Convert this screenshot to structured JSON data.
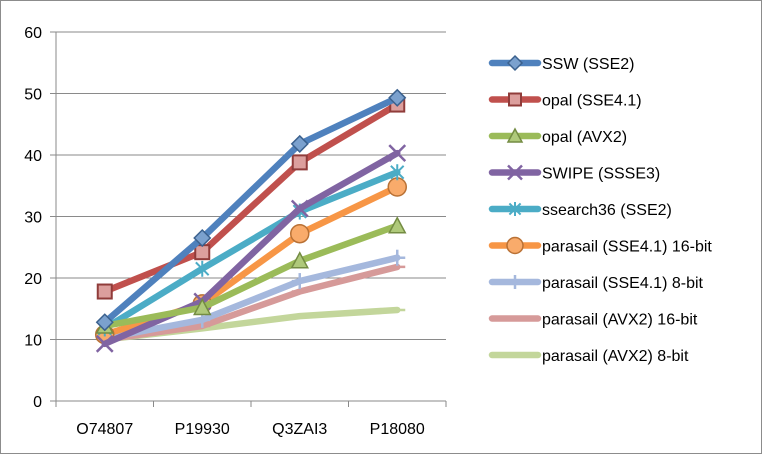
{
  "chart_data": {
    "type": "line",
    "categories": [
      "O74807",
      "P19930",
      "Q3ZAI3",
      "P18080"
    ],
    "ylim": [
      0,
      60
    ],
    "yticks": [
      0,
      10,
      20,
      30,
      40,
      50,
      60
    ],
    "grid": true,
    "legend_position": "right",
    "series": [
      {
        "name": "SSW (SSE2)",
        "values": [
          12.8,
          26.5,
          41.8,
          49.3
        ],
        "color": "#4f81bd",
        "marker": "diamond"
      },
      {
        "name": "opal (SSE4.1)",
        "values": [
          17.8,
          24.2,
          38.8,
          48.2
        ],
        "color": "#c0504d",
        "marker": "square"
      },
      {
        "name": "opal (AVX2)",
        "values": [
          12.2,
          15.2,
          22.8,
          28.5
        ],
        "color": "#9bbb59",
        "marker": "triangle"
      },
      {
        "name": "SWIPE (SSSE3)",
        "values": [
          9.3,
          16.2,
          31.3,
          40.3
        ],
        "color": "#8064a2",
        "marker": "x"
      },
      {
        "name": "ssearch36 (SSE2)",
        "values": [
          11.8,
          21.5,
          30.8,
          37.2
        ],
        "color": "#4bacc6",
        "marker": "star"
      },
      {
        "name": "parasail (SSE4.1) 16-bit",
        "values": [
          10.8,
          15.8,
          27.2,
          34.8
        ],
        "color": "#f79646",
        "marker": "circle"
      },
      {
        "name": "parasail (SSE4.1) 8-bit",
        "values": [
          10.2,
          13.2,
          19.5,
          23.3
        ],
        "color": "#a5b8dd",
        "marker": "plus"
      },
      {
        "name": "parasail (AVX2) 16-bit",
        "values": [
          10.0,
          12.2,
          17.8,
          21.8
        ],
        "color": "#d69a99",
        "marker": "dash"
      },
      {
        "name": "parasail (AVX2) 8-bit",
        "values": [
          10.0,
          11.8,
          13.8,
          14.8
        ],
        "color": "#c3d69b",
        "marker": "dash"
      }
    ]
  }
}
